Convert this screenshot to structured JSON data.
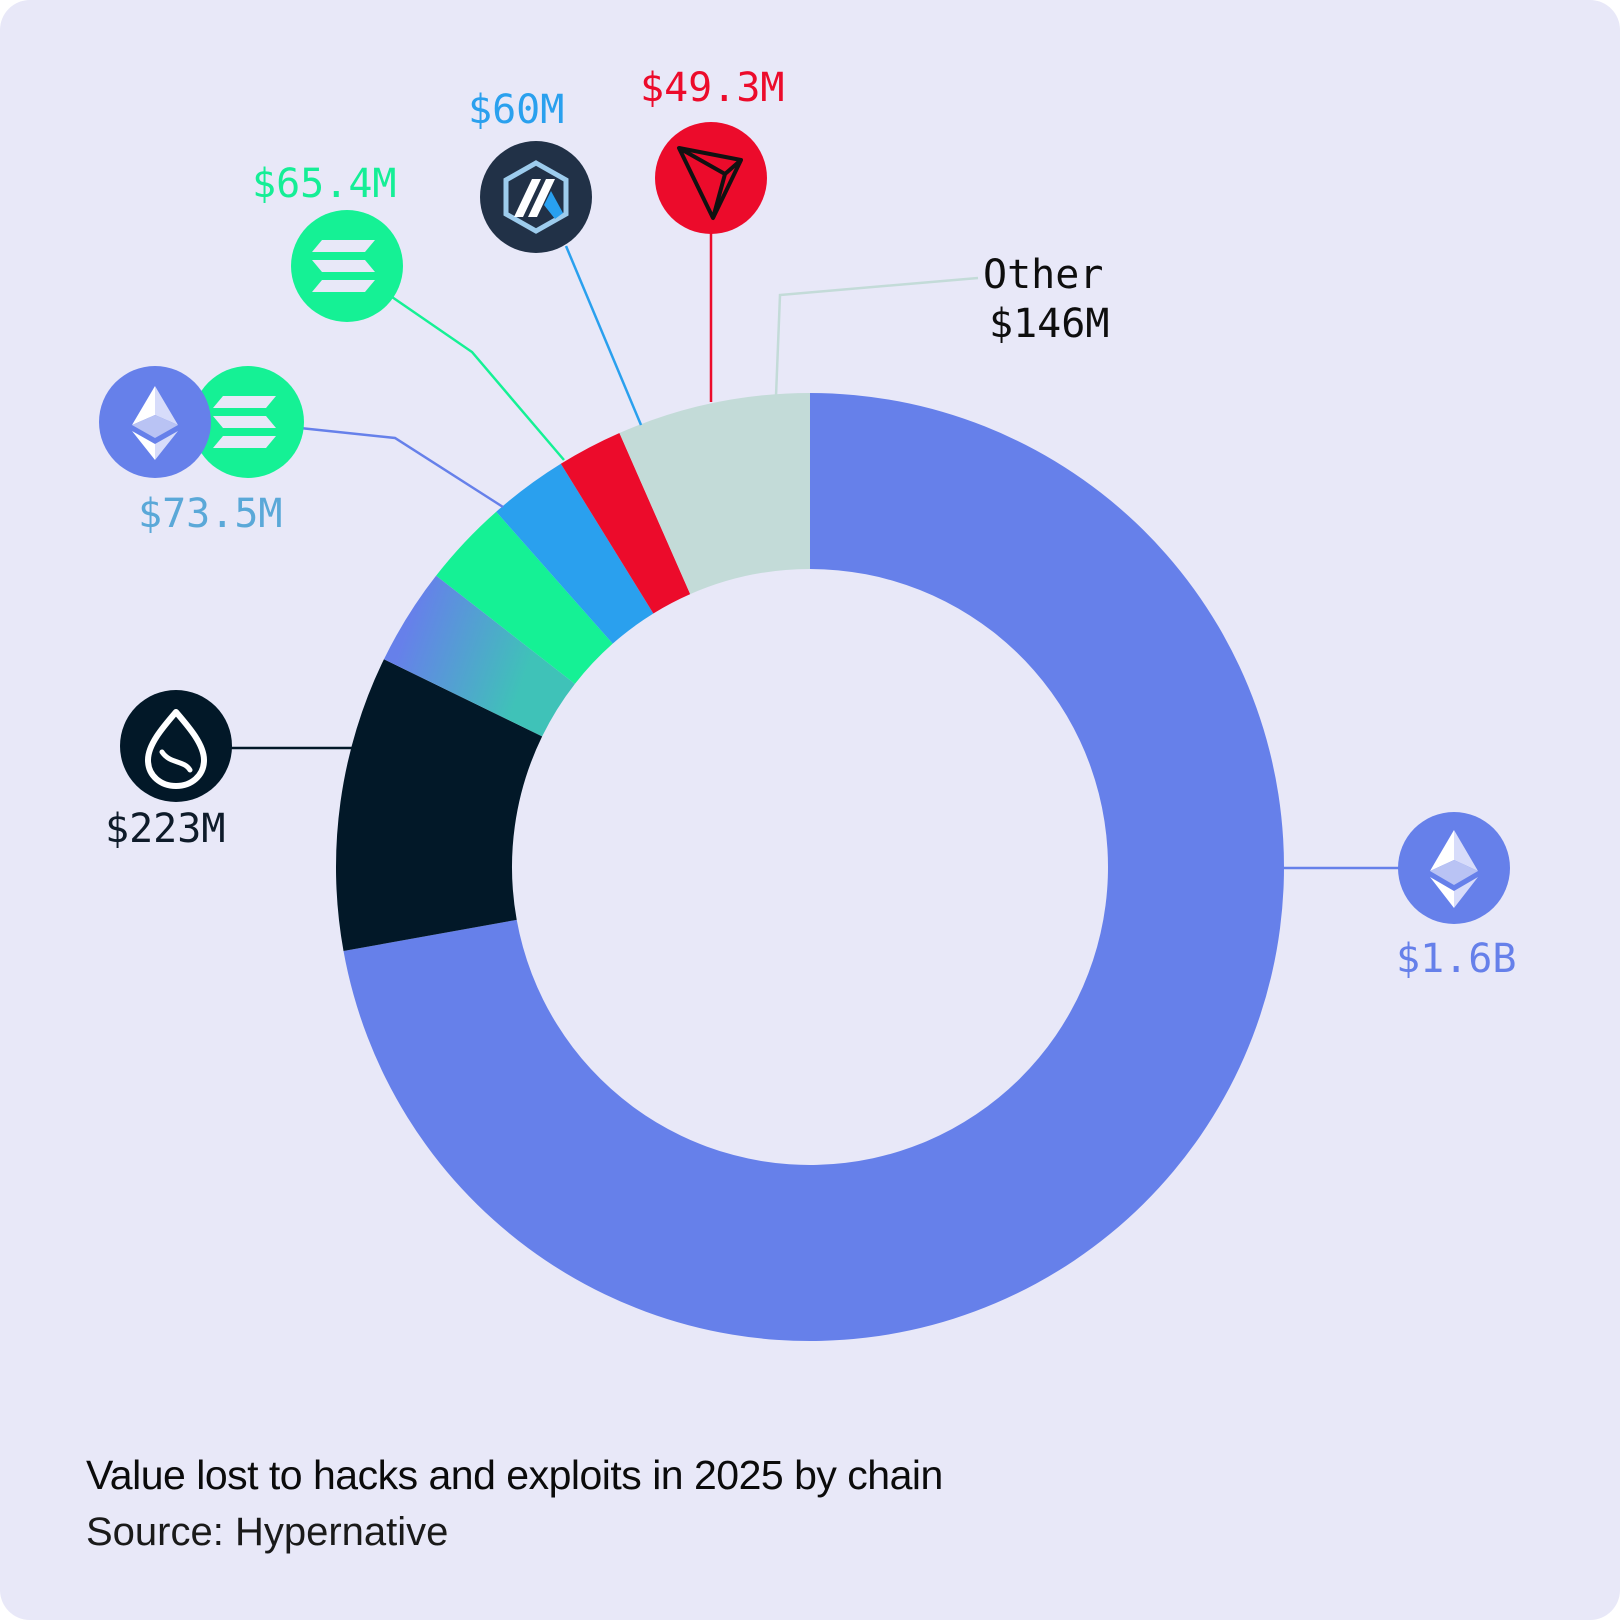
{
  "chart_data": {
    "type": "donut",
    "title": "Value lost to hacks and exploits in 2025 by chain",
    "source": "Source: Hypernative",
    "unit": "USD",
    "slices": [
      {
        "label": "$1.6B",
        "value": 1600,
        "color": "#6680ea",
        "icon": "ethereum-icon"
      },
      {
        "label": "$223M",
        "value": 223,
        "color": "#021828",
        "icon": "sui-icon"
      },
      {
        "label": "$73.5M",
        "value": 73.5,
        "color": "#3fb6c2",
        "icon": "ethereum-solana-icon"
      },
      {
        "label": "$65.4M",
        "value": 65.4,
        "color": "#15f195",
        "icon": "solana-icon"
      },
      {
        "label": "$60M",
        "value": 60,
        "color": "#2aa0ee",
        "icon": "arbitrum-icon"
      },
      {
        "label": "$49.3M",
        "value": 49.3,
        "color": "#ec0b2b",
        "icon": "tron-icon"
      },
      {
        "label": "$146M",
        "value": 146,
        "color": "#c3dbd8",
        "name": "Other"
      }
    ]
  },
  "label_colors": {
    "eth": "#6680ea",
    "sui": "#0e1b2a",
    "ethsol": "#5aa8d8",
    "sol": "#15ee96",
    "arb": "#2aa0ee",
    "tron": "#ec0b2b",
    "other": "#0e0e0e"
  }
}
